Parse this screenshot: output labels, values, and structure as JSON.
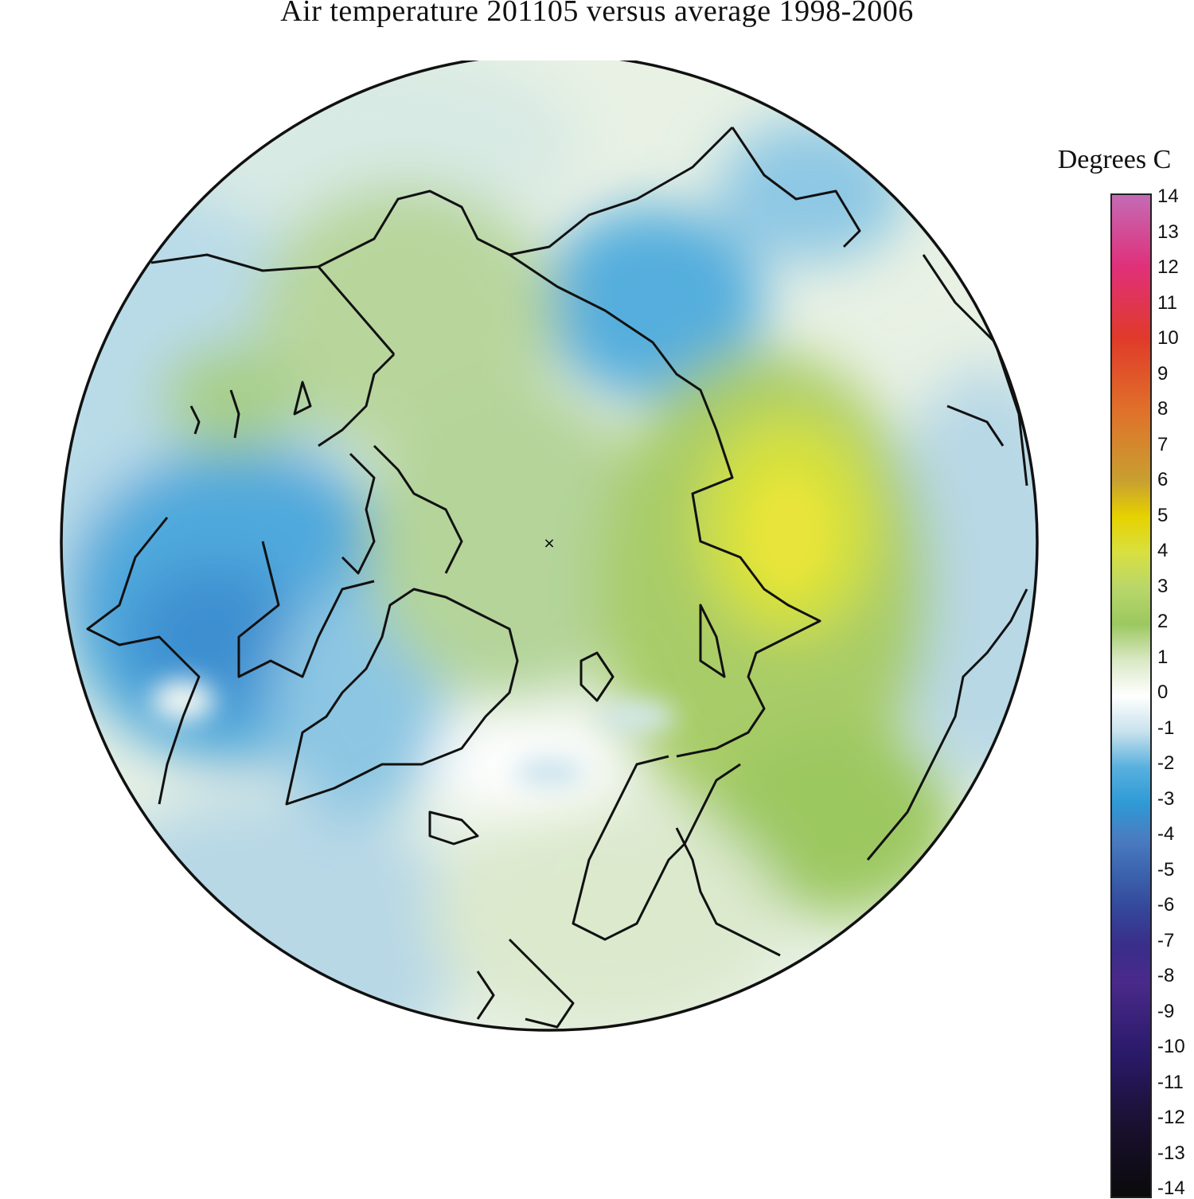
{
  "title": "Air temperature 201105 versus average 1998-2006",
  "legend": {
    "title": "Degrees C",
    "ticks": [
      "14",
      "13",
      "12",
      "11",
      "10",
      "9",
      "8",
      "7",
      "6",
      "5",
      "4",
      "3",
      "2",
      "1",
      "0",
      "-1",
      "-2",
      "-3",
      "-4",
      "-5",
      "-6",
      "-7",
      "-8",
      "-9",
      "-10",
      "-11",
      "-12",
      "-13",
      "-14"
    ],
    "range": [
      -14,
      14
    ],
    "colors": {
      "14": "#c46bb5",
      "12": "#e0307a",
      "10": "#e03a2a",
      "8": "#e0702a",
      "6": "#c8a030",
      "5": "#e6d200",
      "4": "#d8e040",
      "3": "#b8d66a",
      "2": "#9cc860",
      "1": "#d9e8c4",
      "0": "#ffffff",
      "-1": "#c8e2ec",
      "-2": "#58b0de",
      "-3": "#2e9ad6",
      "-4": "#4a7cc0",
      "-5": "#3b62ad",
      "-6": "#34469a",
      "-7": "#3a2d8a",
      "-8": "#4a2a8a",
      "-10": "#2a1a6a",
      "-12": "#1a1030",
      "-14": "#0a0a0a"
    }
  },
  "map": {
    "projection": "north polar stereographic",
    "pole_marker": "×"
  }
}
